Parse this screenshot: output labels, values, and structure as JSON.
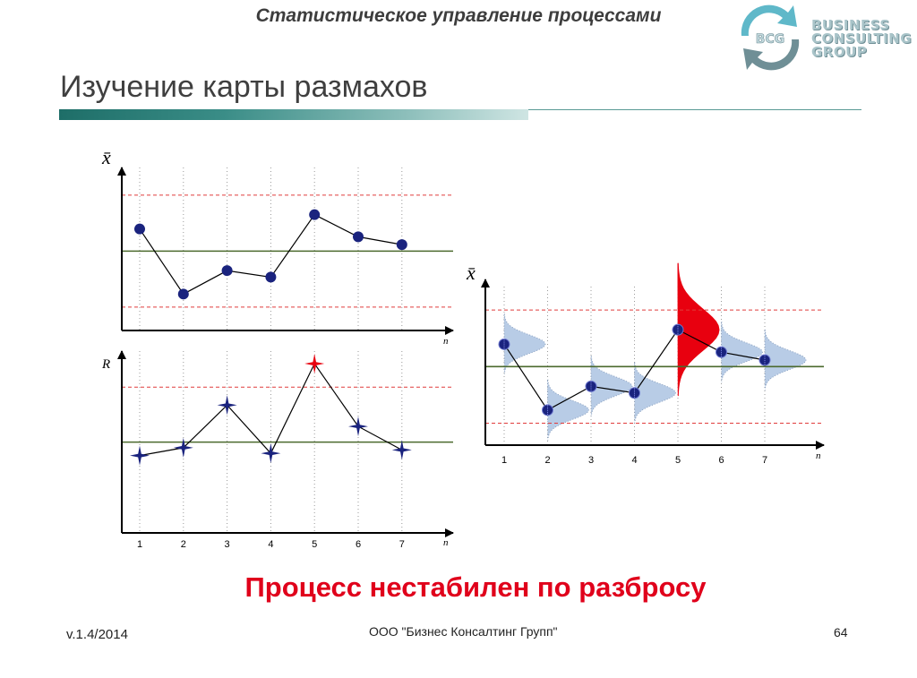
{
  "header": {
    "subtitle": "Статистическое управление процессами",
    "title": "Изучение карты размахов"
  },
  "logo": {
    "emblem_text": "BCG",
    "lines": [
      "BUSINESS",
      "CONSULTING",
      "GROUP"
    ],
    "colors": {
      "arrow_dark": "#6f8f96",
      "arrow_teal": "#5fb8c9",
      "text": "#a9c4c9"
    }
  },
  "colors": {
    "center_line": "#4b6a2e",
    "control_limit": "#e03c3c",
    "series": "#1a237e",
    "out_of_control": "#e8000f",
    "distribution": "#b8cce6",
    "title_bar_start": "#1e6e68",
    "conclusion": "#e0001b"
  },
  "chart_data": [
    {
      "id": "xbar_chart",
      "type": "line",
      "marker": "circle",
      "ylabel": "x̄",
      "xlabel": "n",
      "x": [
        1,
        2,
        3,
        4,
        5,
        6,
        7
      ],
      "values": [
        6.3,
        1.3,
        3.1,
        2.6,
        7.4,
        5.7,
        5.1
      ],
      "center_line": 4.6,
      "ucl": 8.9,
      "lcl": 0.3,
      "ylim": [
        -1.5,
        10.2
      ]
    },
    {
      "id": "range_chart",
      "type": "line",
      "marker": "star",
      "ylabel": "R",
      "xlabel": "n",
      "x": [
        1,
        2,
        3,
        4,
        5,
        6,
        7
      ],
      "x_tick_labels": [
        "1",
        "2",
        "3",
        "4",
        "5",
        "6",
        "7"
      ],
      "values": [
        3.4,
        4.1,
        7.9,
        3.6,
        11.6,
        6.0,
        3.9
      ],
      "center_line": 4.6,
      "ucl": 9.5,
      "lcl": null,
      "out_of_control_index": 4,
      "ylim": [
        -3.5,
        12.4
      ]
    },
    {
      "id": "xbar_distribution_chart",
      "type": "line",
      "marker": "circle",
      "ylabel": "x̄",
      "xlabel": "n",
      "x": [
        1,
        2,
        3,
        4,
        5,
        6,
        7
      ],
      "x_tick_labels": [
        "1",
        "2",
        "3",
        "4",
        "5",
        "6",
        "7"
      ],
      "values": [
        6.3,
        1.3,
        3.1,
        2.6,
        7.4,
        5.7,
        5.1
      ],
      "center_line": 4.6,
      "ucl": 8.9,
      "lcl": 0.3,
      "ylim": [
        -1.5,
        10.2
      ],
      "distribution_spread": [
        1.0,
        1.0,
        1.0,
        1.0,
        2.2,
        1.0,
        1.0
      ],
      "highlight_index": 4
    }
  ],
  "conclusion": "Процесс нестабилен по разбросу",
  "footer": {
    "version": "v.1.4/2014",
    "company": "ООО \"Бизнес Консалтинг Групп\"",
    "page": "64"
  }
}
